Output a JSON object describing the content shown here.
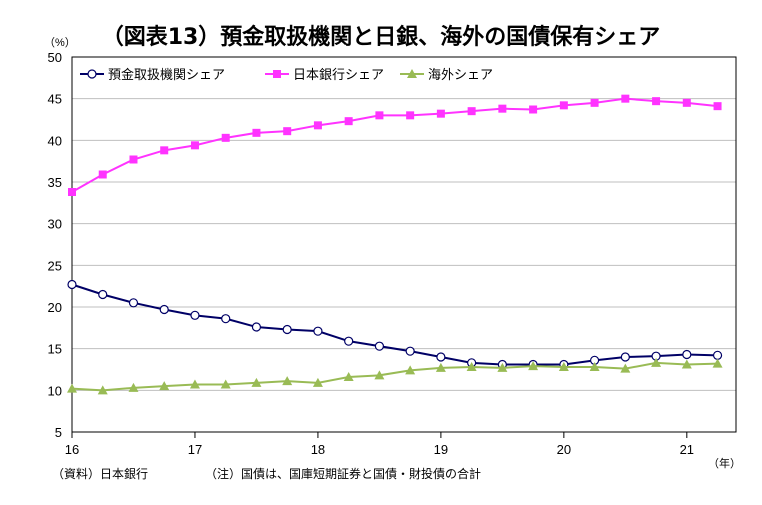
{
  "chart_data": {
    "type": "line",
    "title": "（図表13）預金取扱機関と日銀、海外の国債保有シェア",
    "ylabel": "（%）",
    "xlabel": "（年）",
    "ylim": [
      5,
      50
    ],
    "yticks": [
      5,
      10,
      15,
      20,
      25,
      30,
      35,
      40,
      45,
      50
    ],
    "xlim": [
      16,
      21.4
    ],
    "xticks": [
      {
        "value": 16,
        "label": "16"
      },
      {
        "value": 17,
        "label": "17"
      },
      {
        "value": 18,
        "label": "18"
      },
      {
        "value": 19,
        "label": "19"
      },
      {
        "value": 20,
        "label": "20"
      },
      {
        "value": 21,
        "label": "21"
      }
    ],
    "grid": true,
    "legend_position": "top-left",
    "x": [
      16,
      16.25,
      16.5,
      16.75,
      17,
      17.25,
      17.5,
      17.75,
      18,
      18.25,
      18.5,
      18.75,
      19,
      19.25,
      19.5,
      19.75,
      20,
      20.25,
      20.5,
      20.75,
      21,
      21.25
    ],
    "series": [
      {
        "name": "預金取扱機関シェア",
        "color": "#000066",
        "marker": "circle",
        "values": [
          22.7,
          21.5,
          20.5,
          19.7,
          19.0,
          18.6,
          17.6,
          17.3,
          17.1,
          15.9,
          15.3,
          14.7,
          14.0,
          13.3,
          13.1,
          13.1,
          13.1,
          13.6,
          14.0,
          14.1,
          14.3,
          14.2
        ]
      },
      {
        "name": "日本銀行シェア",
        "color": "#ff33ff",
        "marker": "square",
        "values": [
          33.8,
          35.9,
          37.7,
          38.8,
          39.4,
          40.3,
          40.9,
          41.1,
          41.8,
          42.3,
          43.0,
          43.0,
          43.2,
          43.5,
          43.8,
          43.7,
          44.2,
          44.5,
          45.0,
          44.7,
          44.5,
          44.1
        ]
      },
      {
        "name": "海外シェア",
        "color": "#99bb55",
        "marker": "triangle",
        "values": [
          10.2,
          10.0,
          10.3,
          10.5,
          10.7,
          10.7,
          10.9,
          11.1,
          10.9,
          11.6,
          11.8,
          12.4,
          12.7,
          12.8,
          12.7,
          12.9,
          12.8,
          12.8,
          12.6,
          13.3,
          13.1,
          13.2
        ]
      }
    ]
  },
  "notes": {
    "source": "（資料）日本銀行",
    "remark": "（注）国債は、国庫短期証券と国債・財投債の合計"
  }
}
